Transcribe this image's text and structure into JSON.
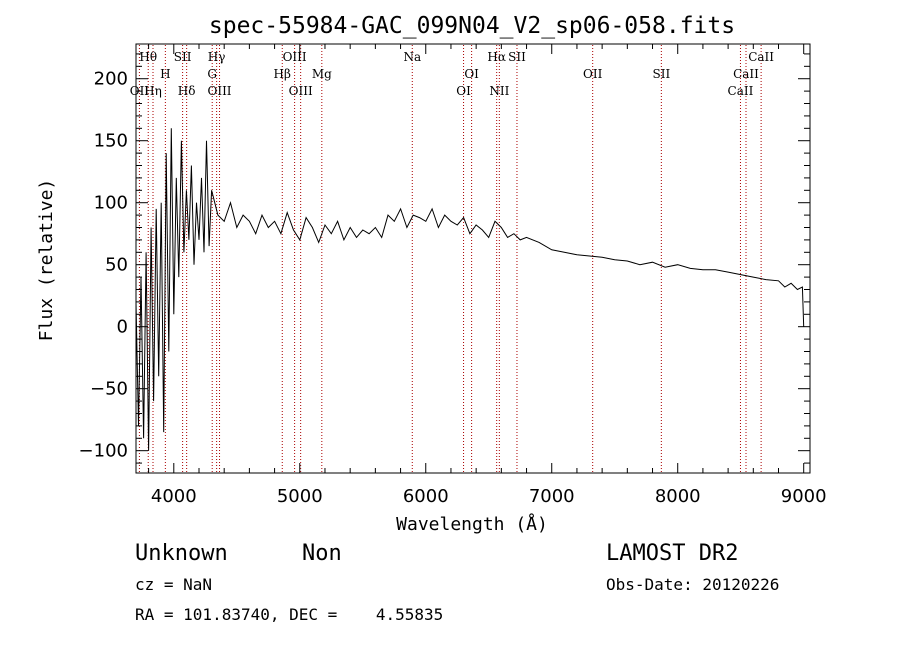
{
  "chart_data": {
    "type": "line",
    "title": "spec-55984-GAC_099N04_V2_sp06-058.fits",
    "xlabel": "Wavelength (Å)",
    "ylabel": "Flux (relative)",
    "xlim": [
      3700,
      9050
    ],
    "ylim": [
      -118,
      228
    ],
    "x_ticks": [
      4000,
      5000,
      6000,
      7000,
      8000,
      9000
    ],
    "y_ticks": [
      -100,
      -50,
      0,
      50,
      100,
      150,
      200
    ],
    "grid": false,
    "series": [
      {
        "x": [
          3700,
          3720,
          3740,
          3760,
          3780,
          3800,
          3820,
          3840,
          3860,
          3880,
          3900,
          3920,
          3940,
          3960,
          3980,
          4000,
          4020,
          4040,
          4060,
          4080,
          4100,
          4120,
          4140,
          4160,
          4180,
          4200,
          4220,
          4240,
          4260,
          4280,
          4300,
          4350,
          4400,
          4450,
          4500,
          4550,
          4600,
          4650,
          4700,
          4750,
          4800,
          4850,
          4900,
          4950,
          5000,
          5050,
          5100,
          5150,
          5200,
          5250,
          5300,
          5350,
          5400,
          5450,
          5500,
          5550,
          5600,
          5650,
          5700,
          5750,
          5800,
          5850,
          5900,
          5950,
          6000,
          6050,
          6100,
          6150,
          6200,
          6250,
          6300,
          6350,
          6400,
          6450,
          6500,
          6550,
          6600,
          6650,
          6700,
          6750,
          6800,
          6900,
          7000,
          7100,
          7200,
          7300,
          7400,
          7500,
          7600,
          7700,
          7800,
          7900,
          8000,
          8100,
          8200,
          8300,
          8400,
          8500,
          8600,
          8700,
          8800,
          8850,
          8900,
          8950,
          8990,
          9000
        ],
        "y": [
          20,
          -80,
          40,
          -90,
          60,
          -100,
          80,
          -60,
          95,
          -40,
          100,
          -85,
          140,
          -20,
          160,
          10,
          120,
          40,
          150,
          60,
          110,
          70,
          130,
          50,
          100,
          70,
          120,
          60,
          150,
          65,
          110,
          90,
          85,
          100,
          80,
          90,
          85,
          75,
          90,
          80,
          85,
          75,
          92,
          78,
          70,
          88,
          80,
          68,
          82,
          75,
          85,
          70,
          80,
          72,
          78,
          75,
          80,
          72,
          90,
          85,
          95,
          80,
          90,
          88,
          85,
          95,
          80,
          90,
          85,
          82,
          88,
          75,
          82,
          78,
          72,
          85,
          80,
          72,
          75,
          70,
          72,
          68,
          62,
          60,
          58,
          57,
          56,
          54,
          53,
          50,
          52,
          48,
          50,
          47,
          46,
          46,
          44,
          42,
          40,
          38,
          37,
          32,
          35,
          30,
          32,
          0
        ]
      }
    ],
    "spectral_lines": [
      {
        "label": "Hθ",
        "x": 3797,
        "tier": 0
      },
      {
        "label": "OII",
        "x": 3727,
        "tier": 2
      },
      {
        "label": "Hη",
        "x": 3835,
        "tier": 2
      },
      {
        "label": "H",
        "x": 3933,
        "tier": 1
      },
      {
        "label": "SII",
        "x": 4070,
        "tier": 0
      },
      {
        "label": "Hδ",
        "x": 4102,
        "tier": 2
      },
      {
        "label": "Hγ",
        "x": 4340,
        "tier": 0
      },
      {
        "label": "G",
        "x": 4305,
        "tier": 1
      },
      {
        "label": "OIII",
        "x": 4363,
        "tier": 2
      },
      {
        "label": "OIII",
        "x": 4959,
        "tier": 0
      },
      {
        "label": "Hβ",
        "x": 4861,
        "tier": 1
      },
      {
        "label": "Mg",
        "x": 5175,
        "tier": 1
      },
      {
        "label": "OIII",
        "x": 5007,
        "tier": 2
      },
      {
        "label": "Na",
        "x": 5893,
        "tier": 0
      },
      {
        "label": "OI",
        "x": 6364,
        "tier": 1
      },
      {
        "label": "OI",
        "x": 6300,
        "tier": 2
      },
      {
        "label": "Hα",
        "x": 6563,
        "tier": 0
      },
      {
        "label": "SII",
        "x": 6724,
        "tier": 0
      },
      {
        "label": "NII",
        "x": 6584,
        "tier": 2
      },
      {
        "label": "OII",
        "x": 7325,
        "tier": 1
      },
      {
        "label": "SII",
        "x": 7870,
        "tier": 1
      },
      {
        "label": "CaII",
        "x": 8662,
        "tier": 0
      },
      {
        "label": "CaII",
        "x": 8542,
        "tier": 1
      },
      {
        "label": "CaII",
        "x": 8498,
        "tier": 2
      }
    ],
    "line_marker_color": "#aa0000"
  },
  "info": {
    "class_name": "Unknown",
    "subclass": "Non",
    "survey": "LAMOST DR2",
    "cz": "cz = NaN",
    "obs_date": "Obs-Date: 20120226",
    "coords": "RA = 101.83740, DEC =    4.55835"
  }
}
